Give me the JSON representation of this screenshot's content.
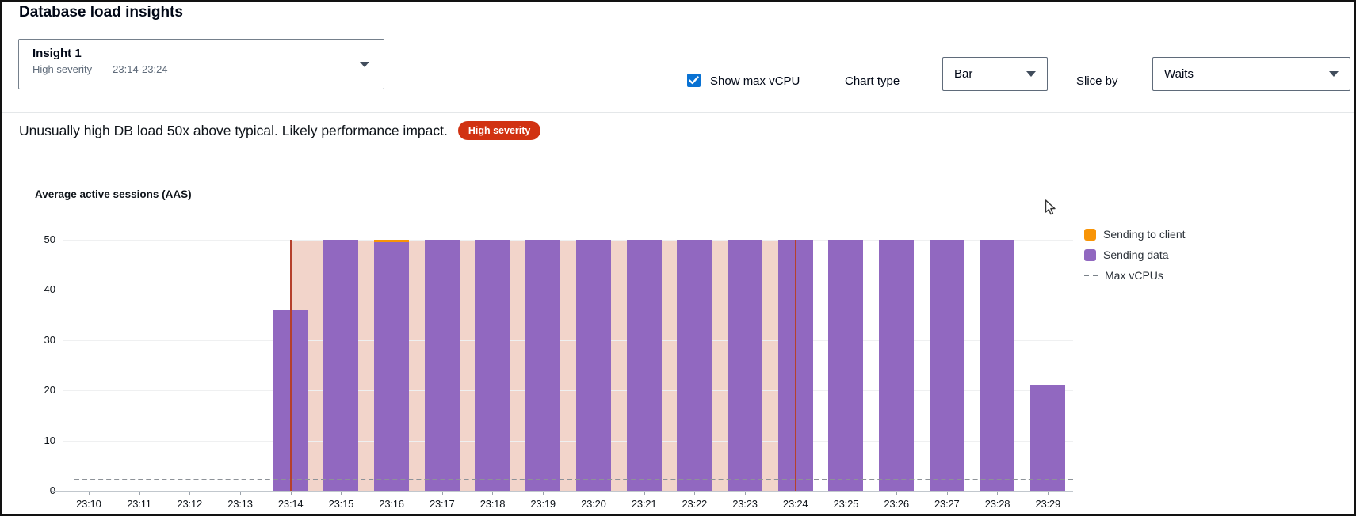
{
  "page": {
    "title": "Database load insights"
  },
  "insight_selector": {
    "name": "Insight 1",
    "severity": "High severity",
    "time_range": "23:14-23:24"
  },
  "controls": {
    "show_max_vcpu_label": "Show max vCPU",
    "show_max_vcpu_checked": true,
    "chart_type_label": "Chart type",
    "chart_type_value": "Bar",
    "slice_by_label": "Slice by",
    "slice_by_value": "Waits"
  },
  "alert": {
    "message": "Unusually high DB load 50x above typical. Likely performance impact.",
    "badge": "High severity",
    "badge_color": "#d13212"
  },
  "chart_data": {
    "type": "bar",
    "title": "Average active sessions (AAS)",
    "ylabel": "Average active sessions (AAS)",
    "xlabel": "",
    "ylim": [
      0,
      50
    ],
    "yticks": [
      0,
      10,
      20,
      30,
      40,
      50
    ],
    "grid": true,
    "legend_position": "right",
    "categories": [
      "23:10",
      "23:11",
      "23:12",
      "23:13",
      "23:14",
      "23:15",
      "23:16",
      "23:17",
      "23:18",
      "23:19",
      "23:20",
      "23:21",
      "23:22",
      "23:23",
      "23:24",
      "23:25",
      "23:26",
      "23:27",
      "23:28",
      "23:29"
    ],
    "series": [
      {
        "name": "Sending to client",
        "color": "#f89406",
        "values": [
          0,
          0,
          0,
          0,
          0,
          0,
          0.5,
          0,
          0,
          0,
          0,
          0,
          0,
          0,
          0,
          0,
          0,
          0,
          0,
          0
        ]
      },
      {
        "name": "Sending data",
        "color": "#9168c0",
        "values": [
          0,
          0,
          0,
          0,
          36,
          50,
          49.5,
          50,
          50,
          50,
          50,
          50,
          50,
          50,
          50,
          50,
          50,
          50,
          50,
          21
        ]
      }
    ],
    "max_vcpus": 2,
    "max_vcpus_label": "Max vCPUs",
    "max_vcpus_line_color": "#8d9298",
    "highlight": {
      "from": "23:14",
      "to": "23:24",
      "color": "#f2d4ca",
      "edge_color": "#b5402c"
    },
    "legend": [
      "Sending to client",
      "Sending data",
      "Max vCPUs"
    ]
  }
}
